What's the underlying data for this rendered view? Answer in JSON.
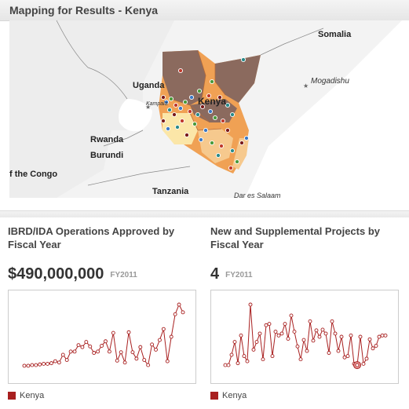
{
  "header": {
    "title": "Mapping for Results - Kenya"
  },
  "map": {
    "labels": {
      "somalia": "Somalia",
      "uganda": "Uganda",
      "kenya": "Kenya",
      "kampala": "Kampala",
      "mogadishu": "Mogadishu",
      "rwanda": "Rwanda",
      "burundi": "Burundi",
      "congo": "f the Congo",
      "tanzania": "Tanzania",
      "daressalaam": "Dar es Salaam"
    },
    "colors": {
      "region_dark": "#8b6a5e",
      "region_orange": "#f0a154",
      "region_light": "#f6c98e",
      "region_pale": "#fbe6a8",
      "water": "#ffffff",
      "land": "#f2f2f2"
    }
  },
  "panels": [
    {
      "title": "IBRD/IDA Operations Approved by Fiscal Year",
      "value": "$490,000,000",
      "fy": "FY2011",
      "legend": "Kenya"
    },
    {
      "title": "New and Supplemental Projects by Fiscal Year",
      "value": "4",
      "fy": "FY2011",
      "legend": "Kenya"
    }
  ],
  "chart_data": [
    {
      "type": "line",
      "series": [
        {
          "name": "Kenya",
          "values": [
            0.05,
            0.05,
            0.06,
            0.06,
            0.07,
            0.08,
            0.08,
            0.09,
            0.12,
            0.1,
            0.22,
            0.14,
            0.27,
            0.27,
            0.37,
            0.34,
            0.42,
            0.35,
            0.25,
            0.27,
            0.36,
            0.43,
            0.27,
            0.56,
            0.13,
            0.26,
            0.1,
            0.57,
            0.26,
            0.16,
            0.34,
            0.14,
            0.06,
            0.38,
            0.3,
            0.45,
            0.62,
            0.12,
            0.5,
            0.85,
            1.0,
            0.88
          ]
        }
      ],
      "color": "#a81f1f"
    },
    {
      "type": "line",
      "series": [
        {
          "name": "Kenya",
          "values": [
            0.06,
            0.06,
            0.22,
            0.42,
            0.09,
            0.52,
            0.2,
            0.12,
            1.0,
            0.3,
            0.42,
            0.55,
            0.15,
            0.68,
            0.7,
            0.2,
            0.58,
            0.52,
            0.55,
            0.7,
            0.47,
            0.83,
            0.58,
            0.35,
            0.15,
            0.45,
            0.28,
            0.74,
            0.44,
            0.6,
            0.5,
            0.61,
            0.55,
            0.25,
            0.74,
            0.55,
            0.28,
            0.5,
            0.18,
            0.2,
            0.52,
            0.08,
            0.06,
            0.5,
            0.08,
            0.16,
            0.46,
            0.32,
            0.36,
            0.5,
            0.52,
            0.52
          ]
        }
      ],
      "highlight_index": 42,
      "color": "#a81f1f"
    }
  ]
}
